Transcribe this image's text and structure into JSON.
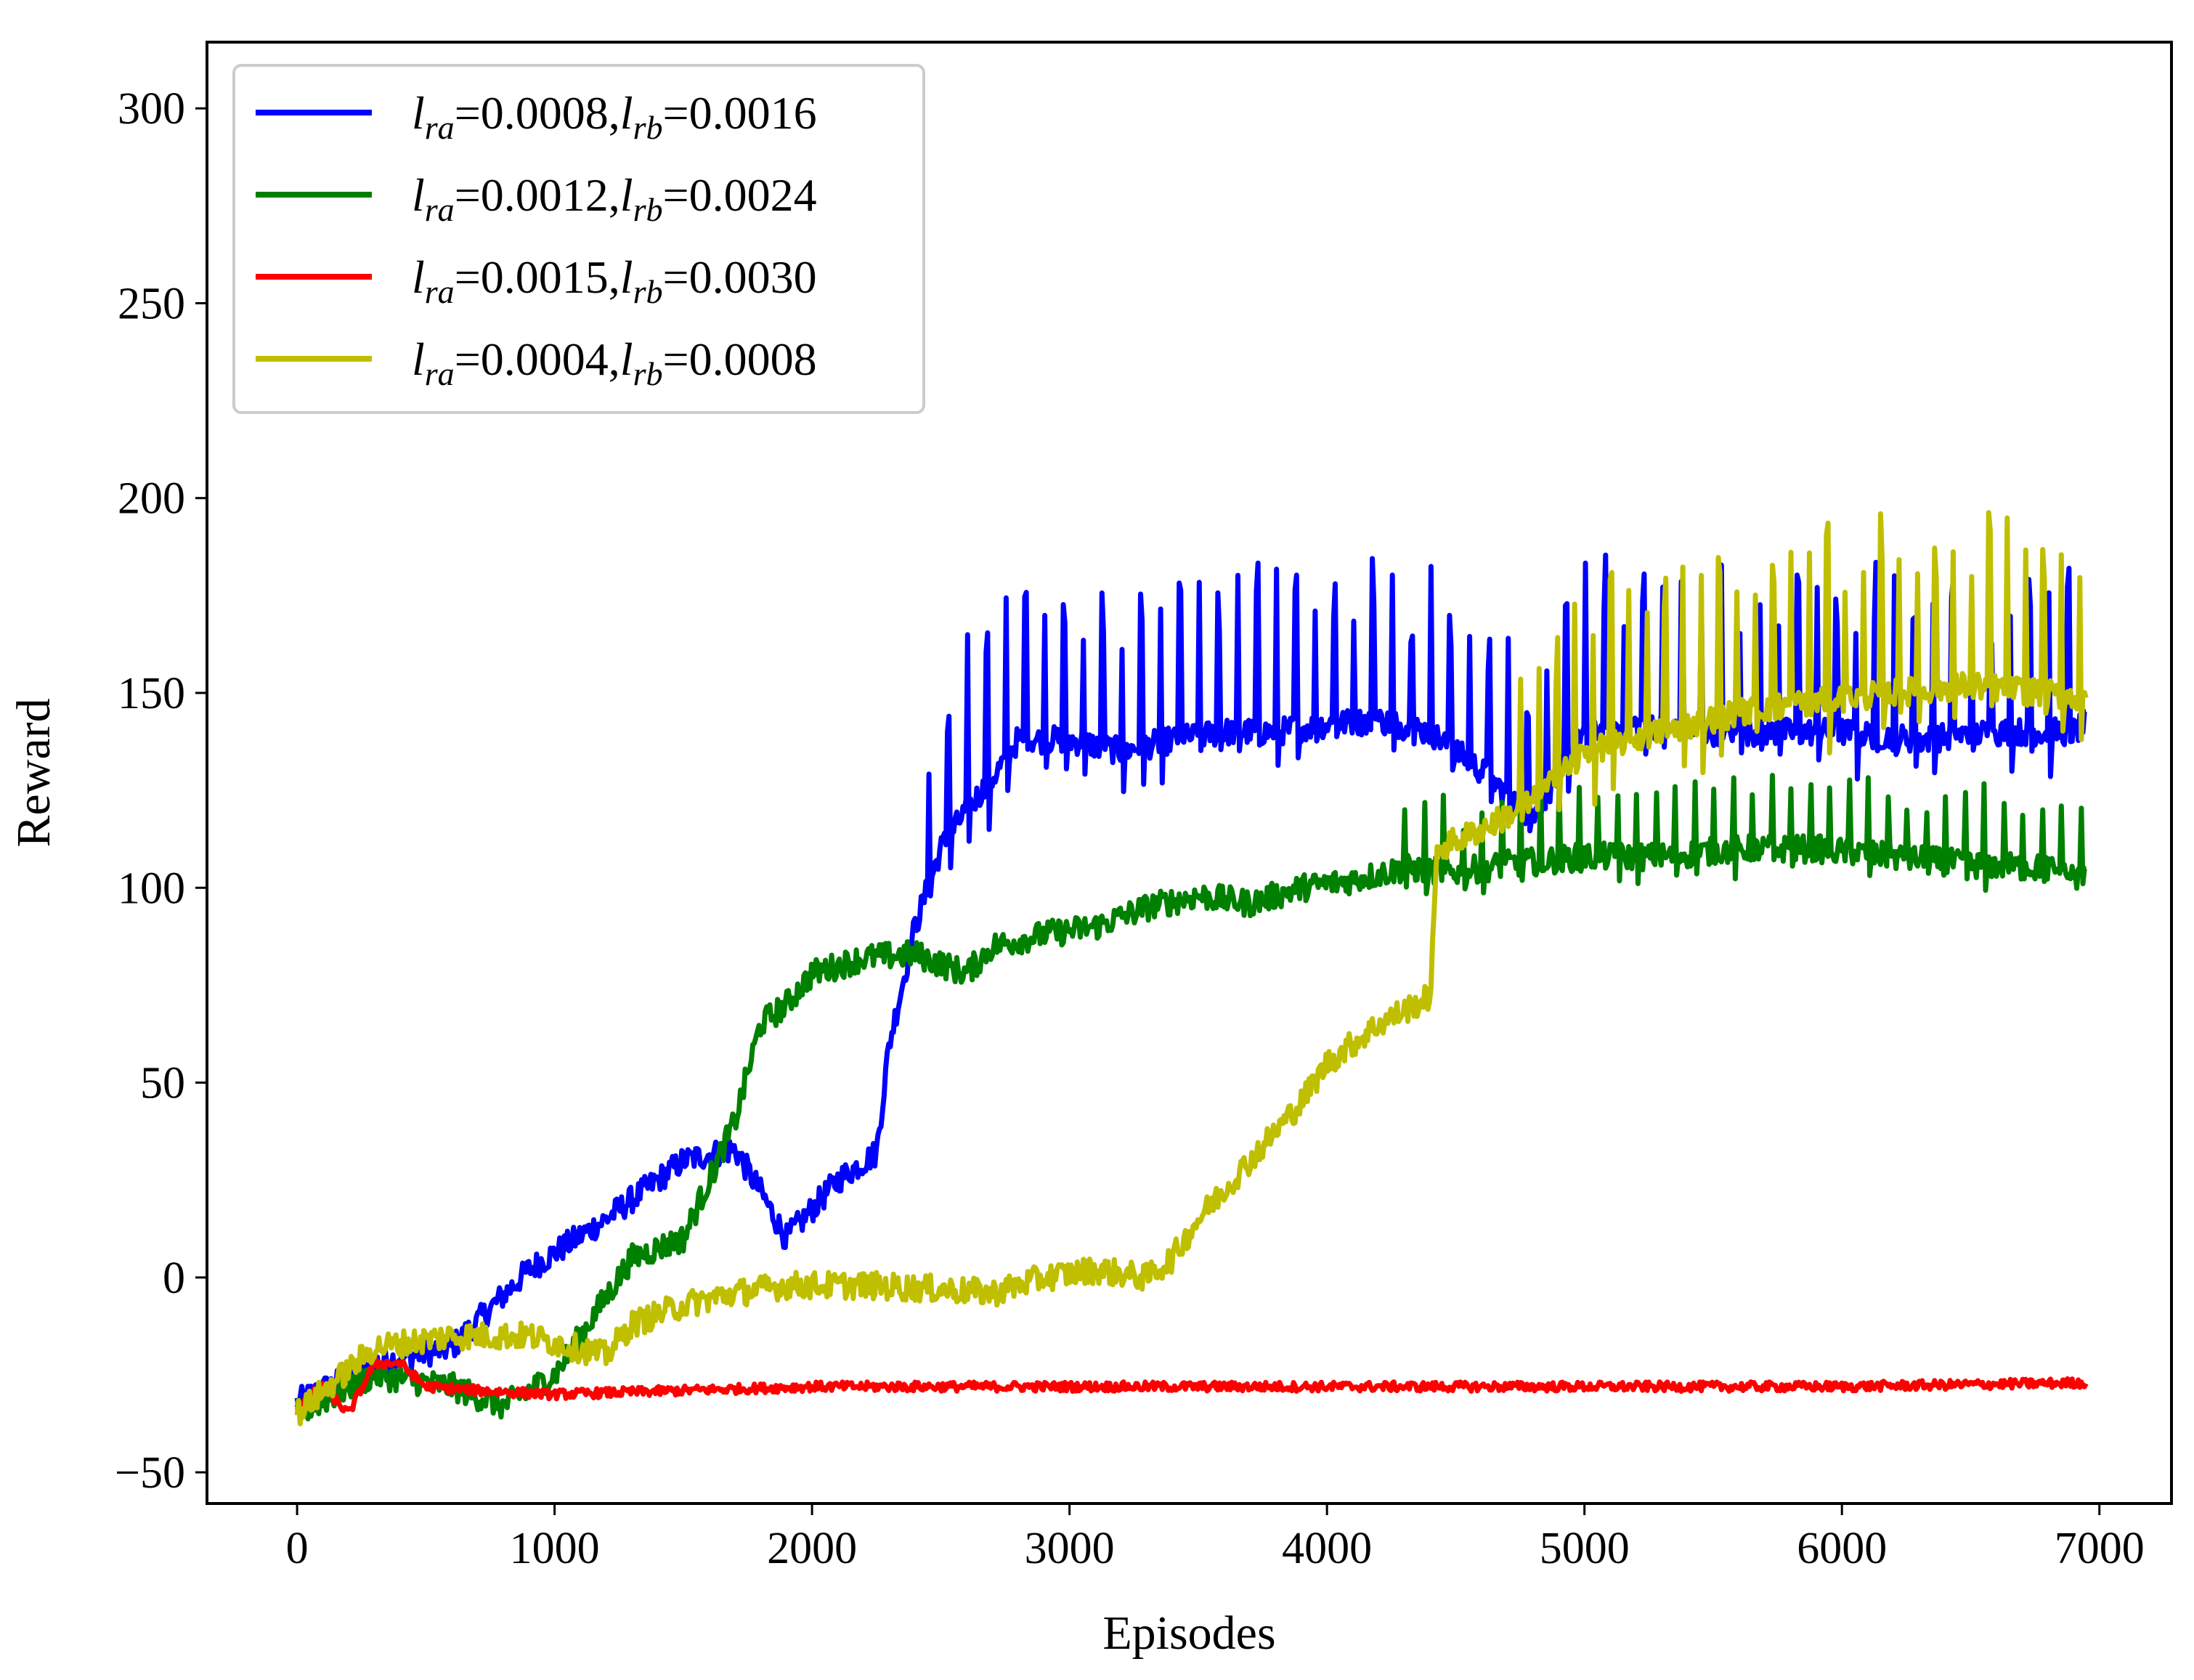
{
  "chart_data": {
    "type": "line",
    "title": "",
    "xlabel": "Episodes",
    "ylabel": "Reward",
    "xlim": [
      -350,
      7280
    ],
    "ylim": [
      -58,
      317
    ],
    "xticks": [
      0,
      1000,
      2000,
      3000,
      4000,
      5000,
      6000,
      7000
    ],
    "yticks": [
      -50,
      0,
      50,
      100,
      150,
      200,
      250,
      300
    ],
    "xtick_labels": [
      "0",
      "1000",
      "2000",
      "3000",
      "4000",
      "5000",
      "6000",
      "7000"
    ],
    "ytick_labels": [
      "−50",
      "0",
      "50",
      "100",
      "150",
      "200",
      "250",
      "300"
    ],
    "grid": false,
    "legend_position": "top-left",
    "series": [
      {
        "name": "lra=0.0008,lrb=0.0016",
        "label_parts": [
          "l",
          "ra",
          "=0.0008,",
          "l",
          "rb",
          "=0.0016"
        ],
        "color": "#0000ff",
        "x": [
          0,
          300,
          600,
          900,
          1200,
          1500,
          1700,
          1800,
          1900,
          2100,
          2250,
          2300,
          2400,
          2500,
          2600,
          2700,
          2800,
          3000,
          3200,
          3400,
          3600,
          3800,
          4000,
          4200,
          4400,
          4600,
          4800,
          5000,
          5200,
          5500,
          5800,
          6000,
          6300,
          6600,
          6900,
          6950
        ],
        "y": [
          -32,
          -22,
          -18,
          2,
          15,
          30,
          33,
          22,
          10,
          25,
          32,
          60,
          90,
          110,
          120,
          128,
          138,
          138,
          135,
          138,
          140,
          140,
          142,
          143,
          140,
          130,
          118,
          140,
          142,
          140,
          140,
          140,
          138,
          140,
          140,
          142
        ],
        "spike_height": 42,
        "spike_start": 2450,
        "spike_period": 75
      },
      {
        "name": "lra=0.0012,lrb=0.0024",
        "label_parts": [
          "l",
          "ra",
          "=0.0012,",
          "l",
          "rb",
          "=0.0024"
        ],
        "color": "#008000",
        "x": [
          0,
          300,
          600,
          800,
          1000,
          1200,
          1300,
          1500,
          1600,
          1700,
          1800,
          1900,
          2000,
          2200,
          2400,
          2600,
          2700,
          2900,
          3100,
          3300,
          3500,
          3700,
          3900,
          4100,
          4300,
          4500,
          4700,
          5000,
          5300,
          5600,
          5900,
          6200,
          6500,
          6800,
          6950
        ],
        "y": [
          -35,
          -25,
          -28,
          -33,
          -25,
          -5,
          5,
          10,
          25,
          40,
          65,
          70,
          78,
          82,
          83,
          78,
          85,
          88,
          90,
          95,
          98,
          96,
          100,
          102,
          105,
          104,
          106,
          108,
          108,
          110,
          110,
          108,
          106,
          105,
          102
        ],
        "spike_height": 20,
        "spike_start": 4300,
        "spike_period": 75
      },
      {
        "name": "lra=0.0015,lrb=0.0030",
        "label_parts": [
          "l",
          "ra",
          "=0.0015,",
          "l",
          "rb",
          "=0.0030"
        ],
        "color": "#ff0000",
        "x": [
          0,
          100,
          200,
          300,
          400,
          500,
          700,
          1000,
          1500,
          2000,
          3000,
          4000,
          5000,
          6000,
          6950
        ],
        "y": [
          -33,
          -28,
          -35,
          -22,
          -22,
          -28,
          -29,
          -30,
          -29,
          -28,
          -28,
          -28,
          -28,
          -28,
          -27
        ],
        "spike_height": 0,
        "spike_start": 99999,
        "spike_period": 100
      },
      {
        "name": "lra=0.0004,lrb=0.0008",
        "label_parts": [
          "l",
          "ra",
          "=0.0004,",
          "l",
          "rb",
          "=0.0008"
        ],
        "color": "#bfbf00",
        "x": [
          0,
          300,
          600,
          900,
          1200,
          1300,
          1500,
          1700,
          1900,
          2200,
          2500,
          2700,
          2900,
          3100,
          3300,
          3400,
          3500,
          3700,
          3900,
          4000,
          4200,
          4400,
          4430,
          4600,
          4800,
          5000,
          5300,
          5600,
          5900,
          6200,
          6500,
          6800,
          6950
        ],
        "y": [
          -35,
          -18,
          -15,
          -15,
          -20,
          -12,
          -7,
          -4,
          -2,
          -2,
          -3,
          -4,
          0,
          2,
          0,
          5,
          15,
          30,
          45,
          55,
          65,
          72,
          110,
          115,
          122,
          135,
          140,
          145,
          148,
          150,
          152,
          150,
          148
        ],
        "spike_height": 45,
        "spike_start": 4750,
        "spike_period": 70
      }
    ]
  }
}
